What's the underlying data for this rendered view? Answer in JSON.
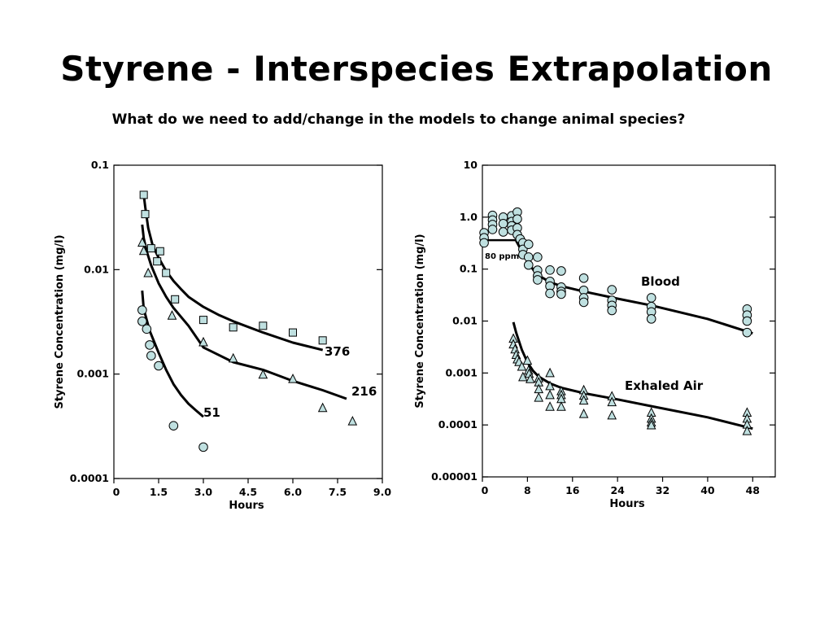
{
  "slide": {
    "title": "Styrene - Interspecies Extrapolation",
    "subtitle": "What do we need to add/change in the models to change animal species?"
  },
  "colors": {
    "marker_fill": "#bfe0e0",
    "marker_stroke": "#000000",
    "line": "#000000",
    "background": "#ffffff"
  },
  "chart_data": [
    {
      "type": "scatter",
      "xlabel": "Hours",
      "ylabel": "Styrene Concentration (mg/l)",
      "log_y": true,
      "xlim": [
        0,
        9
      ],
      "ylim": [
        0.0001,
        0.1
      ],
      "x_ticks": [
        {
          "value": 0,
          "label": "0"
        },
        {
          "value": 1.5,
          "label": "1.5"
        },
        {
          "value": 3.0,
          "label": "3.0"
        },
        {
          "value": 4.5,
          "label": "4.5"
        },
        {
          "value": 6.0,
          "label": "6.0"
        },
        {
          "value": 7.5,
          "label": "7.5"
        },
        {
          "value": 9.0,
          "label": "9.0"
        }
      ],
      "y_ticks": [
        {
          "value": 0.0001,
          "label": "0.0001"
        },
        {
          "value": 0.001,
          "label": "0.001"
        },
        {
          "value": 0.01,
          "label": "0.01"
        },
        {
          "value": 0.1,
          "label": "0.1"
        }
      ],
      "series": [
        {
          "name": "376",
          "marker": "square",
          "points": [
            [
              1.0,
              0.052
            ],
            [
              1.05,
              0.034
            ],
            [
              1.25,
              0.016
            ],
            [
              1.45,
              0.012
            ],
            [
              1.55,
              0.015
            ],
            [
              1.75,
              0.0093
            ],
            [
              2.05,
              0.0052
            ],
            [
              3.0,
              0.0033
            ],
            [
              4.0,
              0.0028
            ],
            [
              5.0,
              0.0029
            ],
            [
              6.0,
              0.0025
            ],
            [
              7.0,
              0.0021
            ]
          ],
          "fit": [
            [
              1.0,
              0.052
            ],
            [
              1.05,
              0.04
            ],
            [
              1.15,
              0.025
            ],
            [
              1.3,
              0.017
            ],
            [
              1.5,
              0.013
            ],
            [
              1.75,
              0.0097
            ],
            [
              2.0,
              0.0078
            ],
            [
              2.25,
              0.0065
            ],
            [
              2.5,
              0.0055
            ],
            [
              3.0,
              0.0044
            ],
            [
              3.5,
              0.0037
            ],
            [
              4.0,
              0.0032
            ],
            [
              5.0,
              0.0025
            ],
            [
              6.0,
              0.002
            ],
            [
              7.0,
              0.0017
            ]
          ]
        },
        {
          "name": "216",
          "marker": "triangle",
          "points": [
            [
              0.95,
              0.018
            ],
            [
              1.0,
              0.015
            ],
            [
              1.15,
              0.0092
            ],
            [
              1.95,
              0.0036
            ],
            [
              3.0,
              0.002
            ],
            [
              4.0,
              0.0014
            ],
            [
              5.0,
              0.00098
            ],
            [
              6.0,
              0.00089
            ],
            [
              7.0,
              0.00047
            ],
            [
              8.0,
              0.00035
            ]
          ],
          "fit": [
            [
              0.95,
              0.027
            ],
            [
              1.0,
              0.02
            ],
            [
              1.1,
              0.015
            ],
            [
              1.25,
              0.011
            ],
            [
              1.5,
              0.0074
            ],
            [
              1.75,
              0.0055
            ],
            [
              2.0,
              0.0043
            ],
            [
              2.5,
              0.0029
            ],
            [
              3.0,
              0.0018
            ],
            [
              4.0,
              0.0013
            ],
            [
              5.0,
              0.0011
            ],
            [
              6.0,
              0.00086
            ],
            [
              7.0,
              0.0007
            ],
            [
              7.8,
              0.00058
            ]
          ]
        },
        {
          "name": "51",
          "marker": "circle",
          "points": [
            [
              0.95,
              0.0041
            ],
            [
              0.95,
              0.0032
            ],
            [
              1.1,
              0.0027
            ],
            [
              1.2,
              0.0019
            ],
            [
              1.25,
              0.0015
            ],
            [
              1.5,
              0.0012
            ],
            [
              2.0,
              0.00032
            ],
            [
              3.0,
              0.0002
            ]
          ],
          "fit": [
            [
              0.95,
              0.0063
            ],
            [
              1.0,
              0.0042
            ],
            [
              1.2,
              0.0026
            ],
            [
              1.5,
              0.0016
            ],
            [
              1.75,
              0.0011
            ],
            [
              2.0,
              0.0008
            ],
            [
              2.25,
              0.00063
            ],
            [
              2.5,
              0.00052
            ],
            [
              2.75,
              0.00045
            ],
            [
              3.0,
              0.00039
            ]
          ]
        }
      ],
      "annotations": [
        "376",
        "216",
        "51"
      ]
    },
    {
      "type": "scatter",
      "xlabel": "Hours",
      "ylabel": "Styrene Concentration (mg/l)",
      "log_y": true,
      "xlim": [
        0,
        52
      ],
      "ylim": [
        1e-05,
        10
      ],
      "x_ticks": [
        {
          "value": 0,
          "label": "0"
        },
        {
          "value": 8,
          "label": "8"
        },
        {
          "value": 16,
          "label": "16"
        },
        {
          "value": 24,
          "label": "24"
        },
        {
          "value": 32,
          "label": "32"
        },
        {
          "value": 40,
          "label": "40"
        },
        {
          "value": 48,
          "label": "48"
        }
      ],
      "y_ticks": [
        {
          "value": 1e-05,
          "label": "0.00001"
        },
        {
          "value": 0.0001,
          "label": "0.0001"
        },
        {
          "value": 0.001,
          "label": "0.001"
        },
        {
          "value": 0.01,
          "label": "0.01"
        },
        {
          "value": 0.1,
          "label": "0.1"
        },
        {
          "value": 1.0,
          "label": "1.0"
        },
        {
          "value": 10,
          "label": "10"
        }
      ],
      "series": [
        {
          "name": "Blood",
          "marker": "circle",
          "points": [
            [
              0.3,
              0.5
            ],
            [
              0.3,
              0.4
            ],
            [
              0.3,
              0.32
            ],
            [
              1.8,
              1.08
            ],
            [
              1.8,
              0.88
            ],
            [
              1.8,
              0.72
            ],
            [
              1.8,
              0.58
            ],
            [
              3.7,
              1.0
            ],
            [
              3.7,
              0.75
            ],
            [
              3.7,
              0.52
            ],
            [
              5.2,
              1.06
            ],
            [
              5.2,
              0.82
            ],
            [
              5.2,
              0.68
            ],
            [
              5.2,
              0.56
            ],
            [
              6.2,
              1.25
            ],
            [
              6.2,
              0.92
            ],
            [
              6.2,
              0.62
            ],
            [
              6.2,
              0.46
            ],
            [
              6.7,
              0.38
            ],
            [
              7.2,
              0.32
            ],
            [
              7.2,
              0.24
            ],
            [
              7.2,
              0.19
            ],
            [
              8.2,
              0.3
            ],
            [
              8.2,
              0.17
            ],
            [
              8.2,
              0.12
            ],
            [
              9.8,
              0.17
            ],
            [
              9.8,
              0.095
            ],
            [
              9.8,
              0.074
            ],
            [
              9.8,
              0.062
            ],
            [
              12.0,
              0.096
            ],
            [
              12.0,
              0.058
            ],
            [
              12.0,
              0.047
            ],
            [
              12.0,
              0.034
            ],
            [
              14.0,
              0.092
            ],
            [
              14.0,
              0.045
            ],
            [
              14.0,
              0.037
            ],
            [
              14.0,
              0.033
            ],
            [
              18.0,
              0.067
            ],
            [
              18.0,
              0.039
            ],
            [
              18.0,
              0.028
            ],
            [
              18.0,
              0.023
            ],
            [
              23.0,
              0.04
            ],
            [
              23.0,
              0.025
            ],
            [
              23.0,
              0.02
            ],
            [
              23.0,
              0.016
            ],
            [
              30.0,
              0.028
            ],
            [
              30.0,
              0.019
            ],
            [
              30.0,
              0.015
            ],
            [
              30.0,
              0.011
            ],
            [
              47.0,
              0.017
            ],
            [
              47.0,
              0.013
            ],
            [
              47.0,
              0.01
            ],
            [
              47.0,
              0.006
            ]
          ],
          "fit": [
            [
              6,
              0.35
            ],
            [
              7,
              0.22
            ],
            [
              8,
              0.14
            ],
            [
              9,
              0.098
            ],
            [
              10,
              0.075
            ],
            [
              12,
              0.056
            ],
            [
              14,
              0.047
            ],
            [
              18,
              0.037
            ],
            [
              24,
              0.027
            ],
            [
              30,
              0.02
            ],
            [
              40,
              0.011
            ],
            [
              48,
              0.0058
            ]
          ]
        },
        {
          "name": "Exhaled Air",
          "marker": "triangle",
          "points": [
            [
              5.5,
              0.0045
            ],
            [
              5.5,
              0.0035
            ],
            [
              5.8,
              0.0028
            ],
            [
              6.0,
              0.0022
            ],
            [
              6.2,
              0.0018
            ],
            [
              6.5,
              0.0016
            ],
            [
              7.0,
              0.0013
            ],
            [
              7.2,
              0.00082
            ],
            [
              8.0,
              0.0017
            ],
            [
              8.2,
              0.0011
            ],
            [
              8.3,
              0.00095
            ],
            [
              8.5,
              0.00075
            ],
            [
              10.0,
              0.00078
            ],
            [
              10.0,
              0.00065
            ],
            [
              10.0,
              0.00048
            ],
            [
              10.0,
              0.00033
            ],
            [
              12.0,
              0.00098
            ],
            [
              12.0,
              0.00055
            ],
            [
              12.0,
              0.00037
            ],
            [
              12.0,
              0.00022
            ],
            [
              14.0,
              0.00044
            ],
            [
              14.0,
              0.00037
            ],
            [
              14.0,
              0.00031
            ],
            [
              14.0,
              0.00022
            ],
            [
              18.0,
              0.00046
            ],
            [
              18.0,
              0.00036
            ],
            [
              18.0,
              0.00029
            ],
            [
              18.0,
              0.00016
            ],
            [
              23.0,
              0.00035
            ],
            [
              23.0,
              0.00027
            ],
            [
              23.0,
              0.00015
            ],
            [
              30.0,
              0.00017
            ],
            [
              30.0,
              0.00013
            ],
            [
              30.0,
              0.00011
            ],
            [
              30.0,
              9.7e-05
            ],
            [
              47.0,
              0.00017
            ],
            [
              47.0,
              0.00013
            ],
            [
              47.0,
              0.0001
            ],
            [
              47.0,
              7.5e-05
            ]
          ],
          "fit": [
            [
              5.5,
              0.0095
            ],
            [
              6,
              0.006
            ],
            [
              7,
              0.0028
            ],
            [
              8,
              0.0016
            ],
            [
              9,
              0.0011
            ],
            [
              10,
              0.00085
            ],
            [
              12,
              0.00063
            ],
            [
              14,
              0.00052
            ],
            [
              18,
              0.00041
            ],
            [
              24,
              0.00031
            ],
            [
              30,
              0.00023
            ],
            [
              40,
              0.00014
            ],
            [
              48,
              8.5e-05
            ]
          ]
        }
      ],
      "exposure_bar": {
        "label": "80 ppm",
        "x": [
          0,
          6
        ],
        "y": 0.36
      },
      "annotations": [
        "Blood",
        "Exhaled Air",
        "80 ppm"
      ]
    }
  ]
}
